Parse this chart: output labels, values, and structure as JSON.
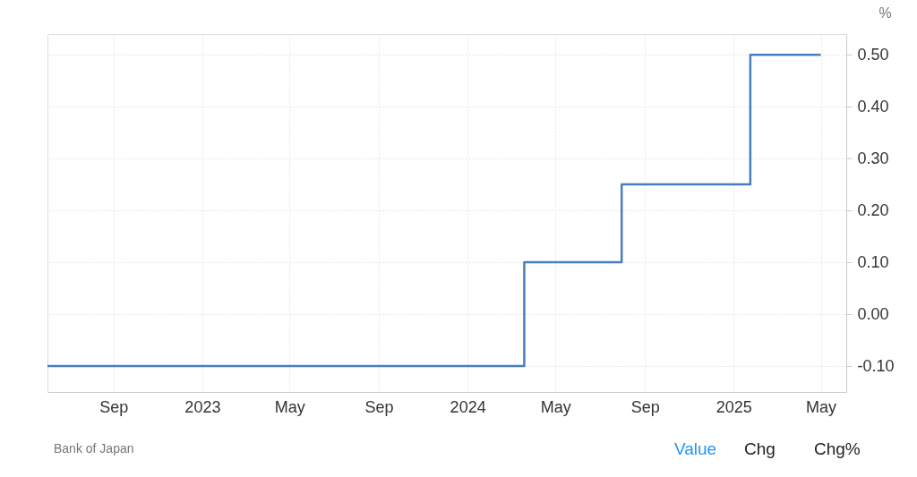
{
  "chart_data": {
    "type": "step",
    "ylabel": "%",
    "series": [
      {
        "color": "#4a7ebb",
        "x": [
          "2022-06-02",
          "2024-03-19",
          "2024-07-31",
          "2025-01-24",
          "2025-05-01"
        ],
        "values": [
          -0.1,
          0.1,
          0.25,
          0.5,
          0.5
        ]
      }
    ],
    "xlim": [
      "2022-06-02",
      "2025-06-05"
    ],
    "xticks": [
      {
        "value": "2022-09-01",
        "label": "Sep"
      },
      {
        "value": "2023-01-01",
        "label": "2023"
      },
      {
        "value": "2023-05-01",
        "label": "May"
      },
      {
        "value": "2023-09-01",
        "label": "Sep"
      },
      {
        "value": "2024-01-01",
        "label": "2024"
      },
      {
        "value": "2024-05-01",
        "label": "May"
      },
      {
        "value": "2024-09-01",
        "label": "Sep"
      },
      {
        "value": "2025-01-01",
        "label": "2025"
      },
      {
        "value": "2025-05-01",
        "label": "May"
      }
    ],
    "ylim": [
      -0.15,
      0.54
    ],
    "yticks": [
      {
        "value": -0.1,
        "label": "-0.10"
      },
      {
        "value": 0,
        "label": "0.00"
      },
      {
        "value": 0.1,
        "label": "0.10"
      },
      {
        "value": 0.2,
        "label": "0.20"
      },
      {
        "value": 0.3,
        "label": "0.30"
      },
      {
        "value": 0.4,
        "label": "0.40"
      },
      {
        "value": 0.5,
        "label": "0.50"
      }
    ],
    "grid": true,
    "annotations": [
      "Bank of Japan",
      "Value",
      "Chg",
      "Chg%"
    ]
  }
}
